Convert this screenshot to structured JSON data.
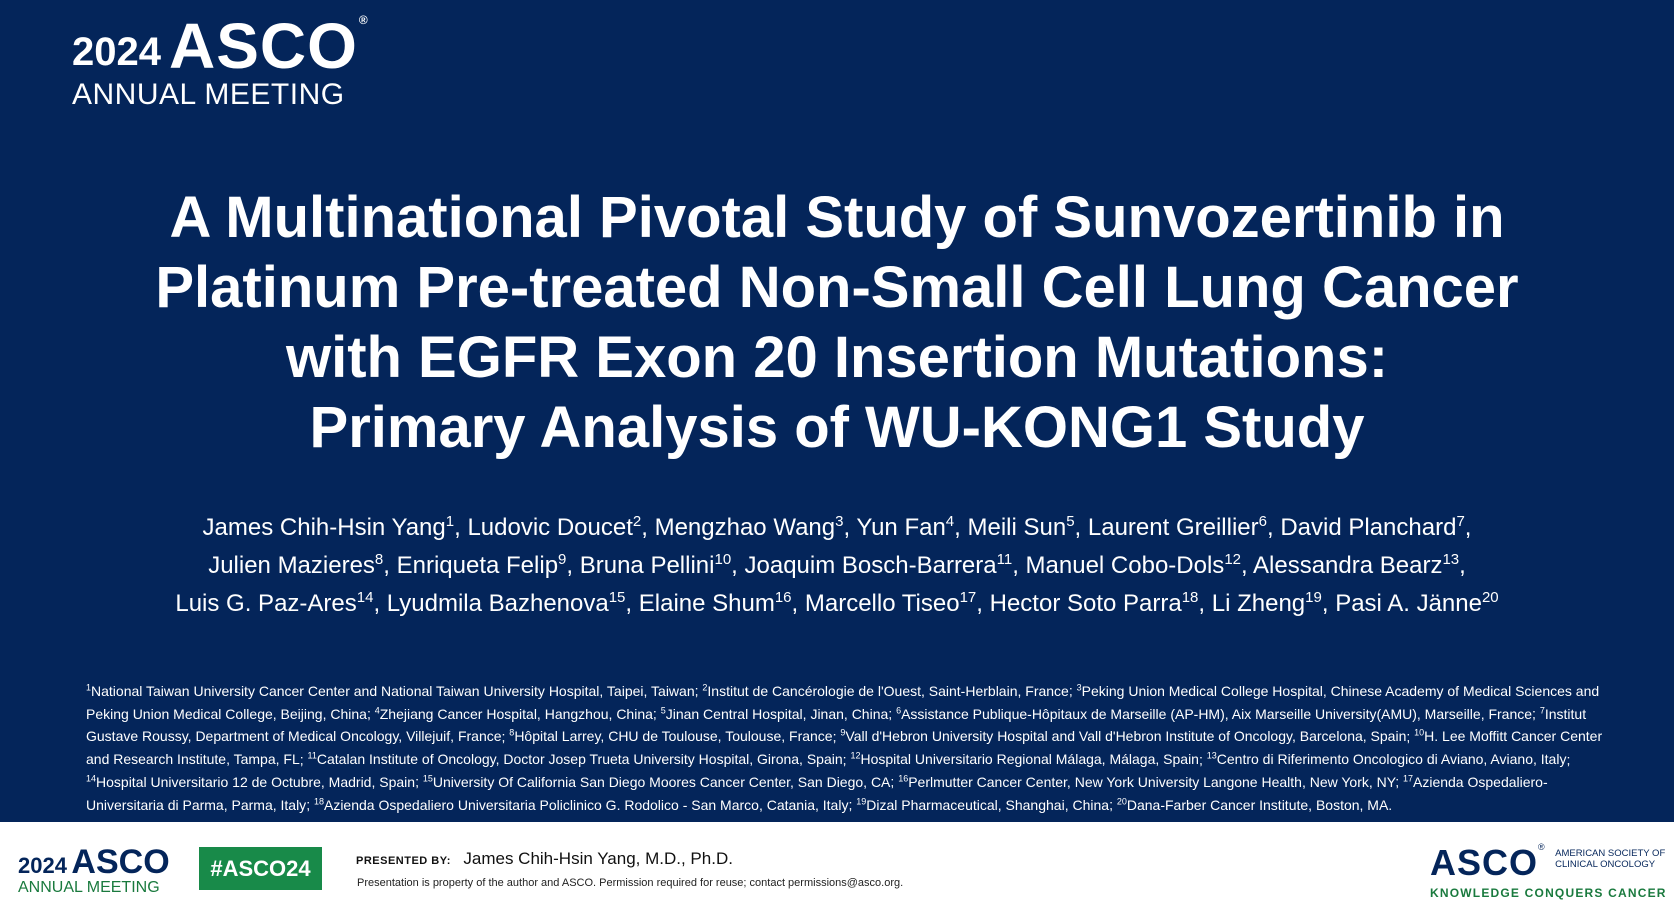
{
  "header_logo": {
    "year": "2024",
    "asco": "ASCO",
    "reg": "®",
    "meeting": "ANNUAL MEETING"
  },
  "title_lines": [
    "A Multinational Pivotal Study of Sunvozertinib in",
    "Platinum Pre-treated Non-Small Cell Lung Cancer",
    "with EGFR Exon 20 Insertion Mutations:",
    "Primary Analysis of WU-KONG1 Study"
  ],
  "authors": [
    {
      "name": "James Chih-Hsin Yang",
      "sup": "1"
    },
    {
      "name": "Ludovic Doucet",
      "sup": "2"
    },
    {
      "name": "Mengzhao Wang",
      "sup": "3"
    },
    {
      "name": "Yun Fan",
      "sup": "4"
    },
    {
      "name": "Meili Sun",
      "sup": "5"
    },
    {
      "name": "Laurent Greillier",
      "sup": "6"
    },
    {
      "name": "David Planchard",
      "sup": "7"
    },
    {
      "name": "Julien Mazieres",
      "sup": "8"
    },
    {
      "name": "Enriqueta Felip",
      "sup": "9"
    },
    {
      "name": "Bruna Pellini",
      "sup": "10"
    },
    {
      "name": "Joaquim Bosch-Barrera",
      "sup": "11"
    },
    {
      "name": "Manuel Cobo-Dols",
      "sup": "12"
    },
    {
      "name": "Alessandra Bearz",
      "sup": "13"
    },
    {
      "name": "Luis G. Paz-Ares",
      "sup": "14"
    },
    {
      "name": "Lyudmila Bazhenova",
      "sup": "15"
    },
    {
      "name": "Elaine Shum",
      "sup": "16"
    },
    {
      "name": "Marcello Tiseo",
      "sup": "17"
    },
    {
      "name": "Hector Soto Parra",
      "sup": "18"
    },
    {
      "name": "Li Zheng",
      "sup": "19"
    },
    {
      "name": "Pasi A. Jänne",
      "sup": "20"
    }
  ],
  "affiliations": [
    {
      "sup": "1",
      "text": "National Taiwan University Cancer Center and National Taiwan University Hospital, Taipei, Taiwan"
    },
    {
      "sup": "2",
      "text": "Institut de Cancérologie de l'Ouest, Saint-Herblain, France"
    },
    {
      "sup": "3",
      "text": "Peking Union Medical College Hospital, Chinese Academy of Medical Sciences and Peking Union Medical College, Beijing, China"
    },
    {
      "sup": "4",
      "text": "Zhejiang Cancer Hospital, Hangzhou, China"
    },
    {
      "sup": "5",
      "text": "Jinan Central Hospital, Jinan, China"
    },
    {
      "sup": "6",
      "text": "Assistance Publique-Hôpitaux de Marseille (AP-HM), Aix Marseille University(AMU), Marseille, France"
    },
    {
      "sup": "7",
      "text": "Institut Gustave Roussy, Department of Medical Oncology, Villejuif, France"
    },
    {
      "sup": "8",
      "text": "Hôpital Larrey, CHU de Toulouse, Toulouse, France"
    },
    {
      "sup": "9",
      "text": "Vall d'Hebron University Hospital and Vall d'Hebron Institute of Oncology, Barcelona, Spain"
    },
    {
      "sup": "10",
      "text": "H. Lee Moffitt Cancer Center and Research Institute, Tampa, FL"
    },
    {
      "sup": "11",
      "text": "Catalan Institute of Oncology, Doctor Josep Trueta University Hospital, Girona, Spain"
    },
    {
      "sup": "12",
      "text": "Hospital Universitario Regional Málaga, Málaga, Spain"
    },
    {
      "sup": "13",
      "text": "Centro di Riferimento Oncologico di Aviano, Aviano, Italy"
    },
    {
      "sup": "14",
      "text": "Hospital Universitario 12 de Octubre, Madrid, Spain"
    },
    {
      "sup": "15",
      "text": "University Of California San Diego Moores Cancer Center, San Diego, CA"
    },
    {
      "sup": "16",
      "text": "Perlmutter Cancer Center, New York University Langone Health, New York, NY"
    },
    {
      "sup": "17",
      "text": "Azienda Ospedaliero-Universitaria di Parma, Parma, Italy"
    },
    {
      "sup": "18",
      "text": "Azienda Ospedaliero Universitaria Policlinico G. Rodolico - San Marco, Catania, Italy"
    },
    {
      "sup": "19",
      "text": "Dizal Pharmaceutical, Shanghai, China"
    },
    {
      "sup": "20",
      "text": "Dana-Farber Cancer Institute, Boston, MA."
    }
  ],
  "footer": {
    "logo_year": "2024",
    "logo_asco": "ASCO",
    "logo_meeting": "ANNUAL MEETING",
    "hashtag": "#ASCO24",
    "presented_label": "PRESENTED BY:",
    "presenter": "James Chih-Hsin Yang, M.D., Ph.D.",
    "disclaimer": "Presentation is property of the author and ASCO. Permission required for reuse; contact permissions@asco.org.",
    "asco_logo": "ASCO",
    "society_line1": "AMERICAN SOCIETY OF",
    "society_line2": "CLINICAL ONCOLOGY",
    "tagline": "KNOWLEDGE CONQUERS CANCER"
  },
  "colors": {
    "background": "#04255a",
    "hashtag_bg": "#188a49",
    "accent_green": "#1a7a3e"
  }
}
